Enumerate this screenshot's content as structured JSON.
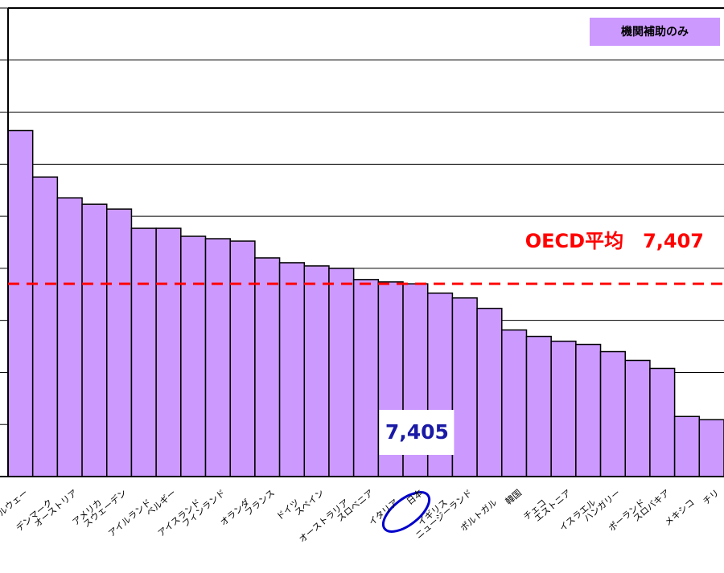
{
  "chart_data": {
    "type": "bar",
    "series": [
      {
        "name": "機関補助のみ",
        "color": "#cc99ff",
        "values": [
          13292,
          11508,
          10708,
          10462,
          10277,
          9538,
          9538,
          9231,
          9138,
          9046,
          8400,
          8215,
          8092,
          8000,
          7569,
          7477,
          7405,
          7046,
          6862,
          6462,
          5631,
          5385,
          5200,
          5077,
          4800,
          4462,
          4154,
          2308,
          2185
        ],
        "value_labels": [
          null,
          null,
          null,
          null,
          null,
          null,
          null,
          null,
          null,
          null,
          null,
          null,
          null,
          null,
          null,
          null,
          "7,405",
          null,
          null,
          null,
          null,
          null,
          null,
          null,
          null,
          null,
          null,
          null,
          null
        ]
      }
    ],
    "categories": [
      "ノルウェー",
      "デンマーク",
      "オーストリア",
      "アメリカ",
      "スウェーデン",
      "アイルランド",
      "ベルギー",
      "アイスランド",
      "フィンランド",
      "オランダ",
      "フランス",
      "ドイツ",
      "スペイン",
      "オーストラリア",
      "スロベニア",
      "イタリア",
      "日本",
      "イギリス",
      "ニュージーランド",
      "ポルトガル",
      "韓国",
      "チェコ",
      "エストニア",
      "イスラエル",
      "ハンガリー",
      "ポーランド",
      "スロバキア",
      "メキシコ",
      "チリ"
    ],
    "ylim": [
      0,
      18000
    ],
    "yticks": [
      0,
      2000,
      4000,
      6000,
      8000,
      10000,
      12000,
      14000,
      16000,
      18000
    ],
    "grid": true,
    "average": {
      "value": 7407,
      "label": "OECD平均　7,407",
      "color": "#ff0000"
    }
  }
}
